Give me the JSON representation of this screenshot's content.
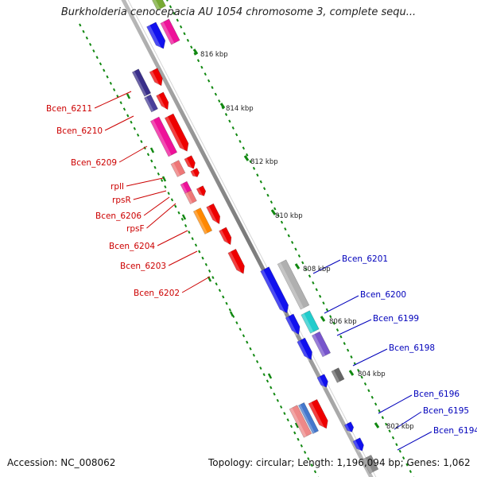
{
  "header": {
    "title": "Burkholderia cenocepacia AU 1054 chromosome 3, complete sequ..."
  },
  "footer": {
    "accession": "Accession: NC_008062",
    "topology": "Topology: circular; Length: 1,196,094 bp; Genes: 1,062"
  },
  "map": {
    "backbone_color": "#8c8c8c",
    "tick_color": "#118811",
    "scale_labels": [
      "816 kbp",
      "814 kbp",
      "812 kbp",
      "810 kbp",
      "808 kbp",
      "806 kbp",
      "804 kbp",
      "802 kbp"
    ],
    "genes_left": [
      {
        "label": "Bcen_6211",
        "color": "#cc0000"
      },
      {
        "label": "Bcen_6210",
        "color": "#cc0000"
      },
      {
        "label": "Bcen_6209",
        "color": "#cc0000"
      },
      {
        "label": "rplI",
        "color": "#cc0000"
      },
      {
        "label": "rpsR",
        "color": "#cc0000"
      },
      {
        "label": "Bcen_6206",
        "color": "#cc0000"
      },
      {
        "label": "rpsF",
        "color": "#cc0000"
      },
      {
        "label": "Bcen_6204",
        "color": "#cc0000"
      },
      {
        "label": "Bcen_6203",
        "color": "#cc0000"
      },
      {
        "label": "Bcen_6202",
        "color": "#cc0000"
      }
    ],
    "genes_right": [
      {
        "label": "Bcen_6201",
        "color": "#0000bb"
      },
      {
        "label": "Bcen_6200",
        "color": "#0000bb"
      },
      {
        "label": "Bcen_6199",
        "color": "#0000bb"
      },
      {
        "label": "Bcen_6198",
        "color": "#0000bb"
      },
      {
        "label": "Bcen_6196",
        "color": "#0000bb"
      },
      {
        "label": "Bcen_6195",
        "color": "#0000bb"
      },
      {
        "label": "Bcen_6194",
        "color": "#0000bb"
      }
    ]
  }
}
